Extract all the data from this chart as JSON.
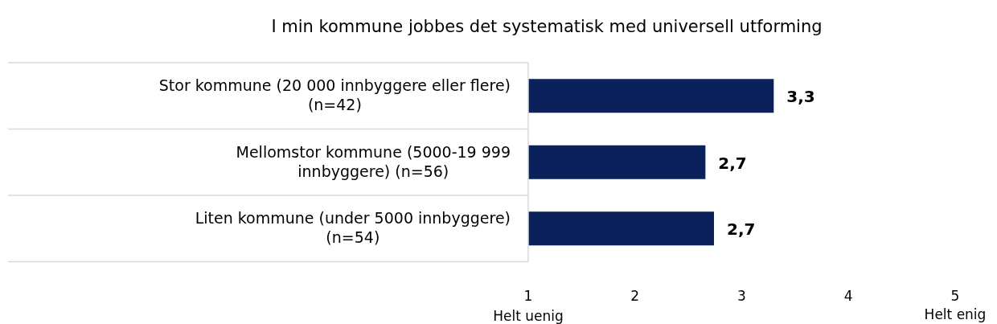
{
  "chart_data": {
    "type": "bar",
    "orientation": "horizontal",
    "title": "I min kommune jobbes det systematisk med universell utforming",
    "categories": [
      "Stor kommune (20 000 innbyggere eller flere)\n(n=42)",
      "Mellomstor kommune (5000-19 999\ninnbyggere) (n=56)",
      "Liten kommune (under 5000 innbyggere)\n(n=54)"
    ],
    "values": [
      3.3,
      2.66,
      2.74
    ],
    "value_labels": [
      "3,3",
      "2,7",
      "2,7"
    ],
    "color": "#0b215c",
    "xlim": [
      1,
      5
    ],
    "xticks": [
      1,
      2,
      3,
      4,
      5
    ],
    "annotations": [
      "Helt uenig",
      "Helt enig"
    ],
    "grid": false
  }
}
